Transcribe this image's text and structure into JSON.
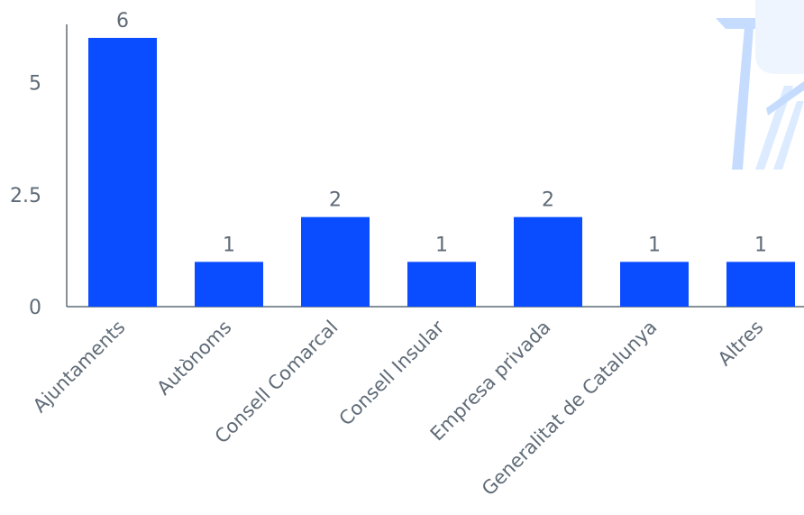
{
  "chart_data": {
    "type": "bar",
    "categories": [
      "Ajuntaments",
      "Autònoms",
      "Consell Comarcal",
      "Consell Insular",
      "Empresa privada",
      "Generalitat de Catalunya",
      "Altres"
    ],
    "values": [
      6,
      1,
      2,
      1,
      2,
      1,
      1
    ],
    "ylim": [
      0,
      6.3
    ],
    "yticks": [
      0,
      2.5,
      5
    ],
    "ytick_labels": [
      "0",
      "2.5",
      "5"
    ],
    "data_labels": [
      "6",
      "1",
      "2",
      "1",
      "2",
      "1",
      "1"
    ],
    "bar_color": "#0a4cff",
    "axis_color": "#5f6b77",
    "grid": false,
    "legend": "none",
    "decoration": {
      "name": "decorative-illustration",
      "colors": [
        "#c5dcff",
        "#dcebff",
        "#eef5ff"
      ]
    }
  }
}
